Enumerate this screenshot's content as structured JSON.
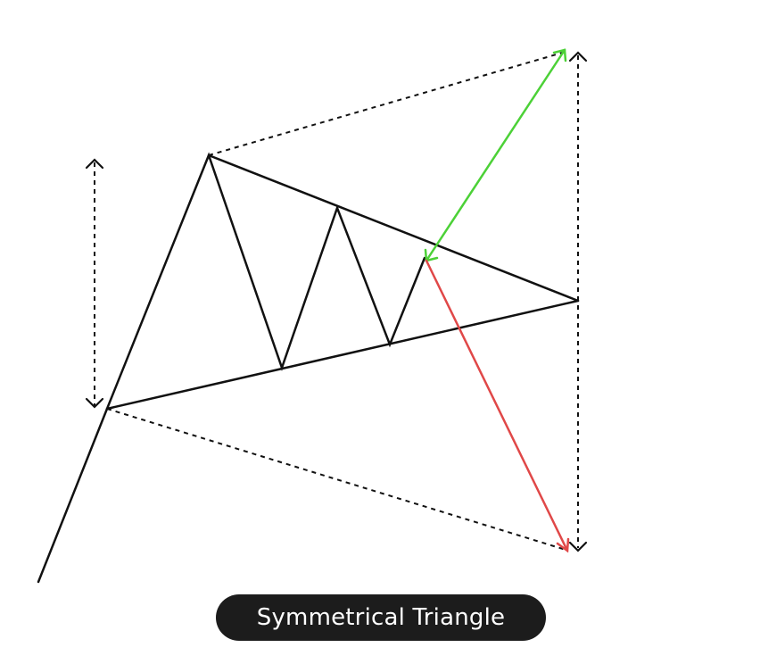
{
  "caption": {
    "label": "Symmetrical Triangle",
    "background": "#1c1c1c",
    "text_color": "#ffffff"
  },
  "colors": {
    "line": "#111111",
    "bullish_target": "#4cd137",
    "bearish_target": "#e04848"
  }
}
